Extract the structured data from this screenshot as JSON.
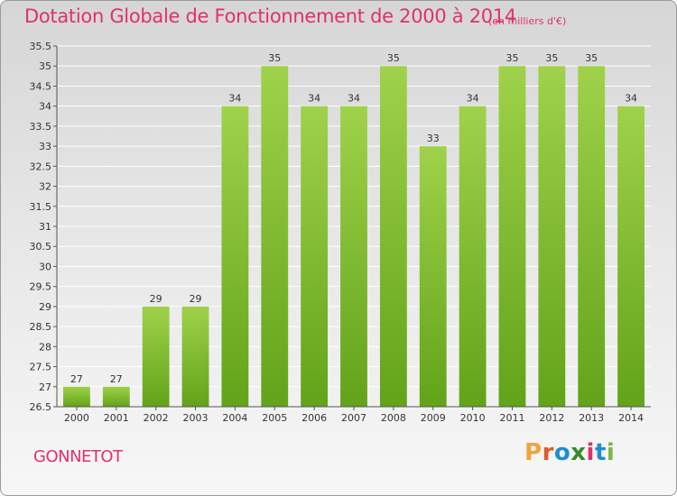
{
  "title": "Dotation Globale de Fonctionnement de 2000 à 2014",
  "subtitle": "(en milliers d'€)",
  "commune": "GONNETOT",
  "logo": {
    "text": "Proxiti",
    "colors": [
      "#f2a33a",
      "#e05a2a",
      "#1b8fd0",
      "#3a8a2a",
      "#e0316a",
      "#1b8fd0",
      "#7ab648"
    ]
  },
  "colors": {
    "title": "#e0316a",
    "bar_top": "#9fd24a",
    "bar_bottom": "#62a31a",
    "grid": "#ffffff"
  },
  "chart_data": {
    "type": "bar",
    "categories": [
      "2000",
      "2001",
      "2002",
      "2003",
      "2004",
      "2005",
      "2006",
      "2007",
      "2008",
      "2009",
      "2010",
      "2011",
      "2012",
      "2013",
      "2014"
    ],
    "values": [
      27,
      27,
      29,
      29,
      34,
      35,
      34,
      34,
      35,
      33,
      34,
      35,
      35,
      35,
      34
    ],
    "ylim": [
      26.5,
      35.5
    ],
    "yticks": [
      "26.5",
      "27",
      "27.5",
      "28",
      "28.5",
      "29",
      "29.5",
      "30",
      "30.5",
      "31",
      "31.5",
      "32",
      "32.5",
      "33",
      "33.5",
      "34",
      "34.5",
      "35",
      "35.5"
    ],
    "grid": true,
    "xlabel": "",
    "ylabel": ""
  }
}
